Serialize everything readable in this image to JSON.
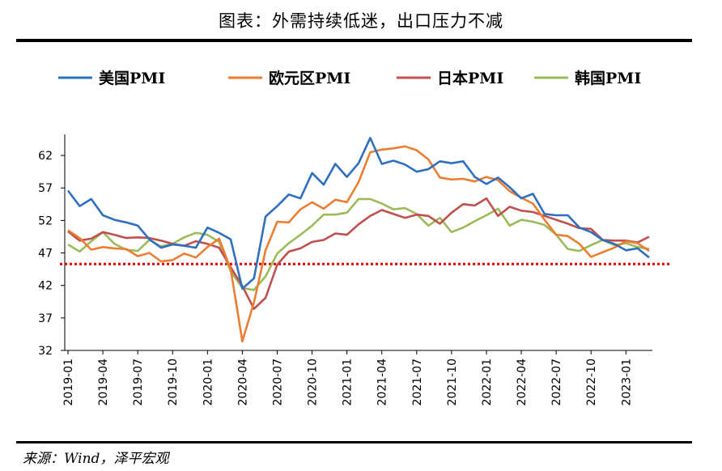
{
  "header": {
    "title": "图表：外需持续低迷，出口压力不减"
  },
  "footer": {
    "source": "来源：Wind，泽平宏观"
  },
  "chart_data": {
    "type": "line",
    "title": "图表：外需持续低迷，出口压力不减",
    "xlabel": "",
    "ylabel": "",
    "ylim": [
      32,
      65
    ],
    "yticks": [
      32,
      37,
      42,
      47,
      52,
      57,
      62
    ],
    "xtick_labels": [
      "2019-01",
      "2019-04",
      "2019-07",
      "2019-10",
      "2020-01",
      "2020-04",
      "2020-07",
      "2020-10",
      "2021-01",
      "2021-04",
      "2021-07",
      "2021-10",
      "2022-01",
      "2022-04",
      "2022-07",
      "2022-10",
      "2023-01"
    ],
    "x_start": "2019-01",
    "x_count": 51,
    "legend_position": "top",
    "grid": false,
    "reference_line": {
      "value": 45.3,
      "color": "#e00000",
      "style": "dotted"
    },
    "series": [
      {
        "name": "美国PMI",
        "color": "#2f6fbf",
        "values": [
          56.6,
          54.2,
          55.3,
          52.8,
          52.1,
          51.7,
          51.2,
          49.1,
          47.8,
          48.3,
          48.1,
          47.8,
          50.9,
          50.1,
          49.1,
          41.5,
          43.1,
          52.6,
          54.2,
          56.0,
          55.4,
          59.3,
          57.5,
          60.7,
          58.7,
          60.8,
          64.7,
          60.7,
          61.2,
          60.6,
          59.5,
          59.9,
          61.1,
          60.8,
          61.1,
          58.7,
          57.6,
          58.6,
          57.1,
          55.4,
          56.1,
          53.0,
          52.8,
          52.8,
          50.9,
          50.2,
          49.0,
          48.4,
          47.4,
          47.7,
          46.3
        ]
      },
      {
        "name": "欧元区PMI",
        "color": "#ed7d31",
        "values": [
          50.5,
          49.3,
          47.5,
          47.9,
          47.7,
          47.6,
          46.5,
          47.0,
          45.7,
          45.9,
          46.9,
          46.3,
          47.9,
          49.2,
          44.5,
          33.4,
          39.4,
          47.4,
          51.8,
          51.7,
          53.7,
          54.8,
          53.8,
          55.2,
          54.8,
          57.9,
          62.5,
          62.9,
          63.1,
          63.4,
          62.8,
          61.4,
          58.6,
          58.3,
          58.4,
          58.0,
          58.7,
          58.2,
          56.5,
          55.5,
          54.6,
          52.1,
          49.8,
          49.6,
          48.4,
          46.4,
          47.1,
          47.8,
          48.8,
          48.5,
          47.3
        ]
      },
      {
        "name": "日本PMI",
        "color": "#c0504d",
        "values": [
          50.3,
          48.9,
          49.2,
          50.2,
          49.8,
          49.3,
          49.4,
          49.3,
          48.9,
          48.4,
          48.1,
          48.8,
          48.4,
          47.8,
          44.8,
          41.9,
          38.4,
          40.1,
          45.2,
          47.2,
          47.7,
          48.7,
          49.0,
          50.0,
          49.8,
          51.4,
          52.7,
          53.6,
          53.0,
          52.4,
          52.9,
          52.7,
          51.5,
          53.2,
          54.5,
          54.3,
          55.4,
          52.7,
          54.1,
          53.5,
          53.3,
          52.7,
          52.1,
          51.5,
          50.8,
          50.7,
          49.0,
          48.9,
          48.9,
          48.6,
          49.5
        ]
      },
      {
        "name": "韩国PMI",
        "color": "#9bbb59",
        "values": [
          48.3,
          47.2,
          48.8,
          50.2,
          48.4,
          47.5,
          47.3,
          49.0,
          48.0,
          48.4,
          49.4,
          50.1,
          49.8,
          48.7,
          44.2,
          41.6,
          41.3,
          43.4,
          46.9,
          48.5,
          49.8,
          51.2,
          52.9,
          52.9,
          53.2,
          55.3,
          55.3,
          54.6,
          53.7,
          53.9,
          53.0,
          51.2,
          52.4,
          50.2,
          50.9,
          51.9,
          52.8,
          53.8,
          51.2,
          52.1,
          51.8,
          51.3,
          49.8,
          47.6,
          47.3,
          48.2,
          49.0,
          48.2,
          48.5,
          47.9,
          47.6
        ]
      }
    ]
  }
}
